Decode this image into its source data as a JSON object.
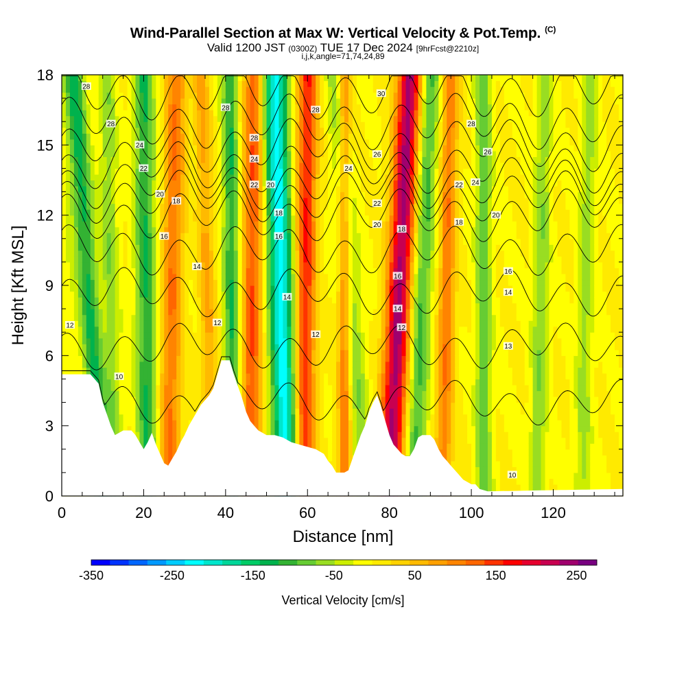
{
  "title": {
    "main": "Wind-Parallel Section at Max W: Vertical Velocity & Pot.Temp.",
    "mark": "(C)",
    "valid_prefix": "Valid 1200 JST",
    "valid_utc": "(0300Z)",
    "valid_date": "TUE 17 Dec 2024",
    "forecast": "[9hrFcst@2210z]",
    "params": "i,j,k,angle=71,74,24,89"
  },
  "chart_data": {
    "type": "heatmap",
    "xlabel": "Distance [nm]",
    "ylabel": "Height [Kft MSL]",
    "xlim": [
      0,
      137
    ],
    "ylim": [
      0,
      18
    ],
    "xticks": [
      0,
      20,
      40,
      60,
      80,
      100,
      120
    ],
    "yticks": [
      0,
      3,
      6,
      9,
      12,
      15,
      18
    ],
    "colorbar": {
      "label": "Vertical Velocity [cm/s]",
      "ticks": [
        -350,
        -250,
        -150,
        -50,
        50,
        150,
        250
      ],
      "range": [
        -350,
        275
      ],
      "step": 25,
      "colors": [
        "#0000ff",
        "#0033ff",
        "#0066ff",
        "#0099ff",
        "#00ccff",
        "#00ffff",
        "#00e6cc",
        "#00d699",
        "#00cc66",
        "#00b24d",
        "#33b233",
        "#66cc33",
        "#99dd22",
        "#ccee00",
        "#ffff00",
        "#ffea00",
        "#ffd200",
        "#ffba00",
        "#ffa000",
        "#ff8400",
        "#ff6600",
        "#ff3300",
        "#ff0000",
        "#e6002e",
        "#c80050",
        "#a0006e",
        "#780080"
      ]
    },
    "w_field": {
      "background_cm_s": 25,
      "bands": [
        {
          "x_bottom": 1,
          "x_top": 2,
          "w": -15,
          "width": 3
        },
        {
          "x_bottom": 10,
          "x_top": 3,
          "w": -130,
          "width": 2.5
        },
        {
          "x_bottom": 13,
          "x_top": 11,
          "w": -70,
          "width": 2
        },
        {
          "x_bottom": 21,
          "x_top": 20,
          "w": -125,
          "width": 2.5
        },
        {
          "x_bottom": 26,
          "x_top": 28,
          "w": 125,
          "width": 2.5
        },
        {
          "x_bottom": 37,
          "x_top": 34,
          "w": 80,
          "width": 2
        },
        {
          "x_bottom": 42,
          "x_top": 41,
          "w": -125,
          "width": 2
        },
        {
          "x_bottom": 46,
          "x_top": 47,
          "w": 150,
          "width": 2.5
        },
        {
          "x_bottom": 55,
          "x_top": 52,
          "w": -240,
          "width": 3
        },
        {
          "x_bottom": 59,
          "x_top": 60,
          "w": 175,
          "width": 2.5
        },
        {
          "x_bottom": 69,
          "x_top": 69,
          "w": 130,
          "width": 1.5
        },
        {
          "x_bottom": 74,
          "x_top": 67,
          "w": -70,
          "width": 2.5
        },
        {
          "x_bottom": 80,
          "x_top": 85,
          "w": 260,
          "width": 3
        },
        {
          "x_bottom": 86,
          "x_top": 90,
          "w": -110,
          "width": 2.5
        },
        {
          "x_bottom": 93,
          "x_top": 95,
          "w": 120,
          "width": 2
        },
        {
          "x_bottom": 103,
          "x_top": 103,
          "w": -90,
          "width": 2
        },
        {
          "x_bottom": 116,
          "x_top": 118,
          "w": -70,
          "width": 2
        },
        {
          "x_bottom": 127,
          "x_top": 129,
          "w": -60,
          "width": 2
        }
      ]
    },
    "terrain_kft": [
      [
        0,
        5.2
      ],
      [
        2,
        5.2
      ],
      [
        7,
        5.2
      ],
      [
        9,
        4.8
      ],
      [
        10,
        4.0
      ],
      [
        11,
        3.5
      ],
      [
        12,
        3.0
      ],
      [
        13,
        2.6
      ],
      [
        15,
        2.8
      ],
      [
        17,
        2.8
      ],
      [
        18,
        2.6
      ],
      [
        19,
        2.3
      ],
      [
        20,
        2.0
      ],
      [
        21,
        2.3
      ],
      [
        22,
        2.7
      ],
      [
        23,
        2.2
      ],
      [
        24,
        1.8
      ],
      [
        25,
        1.4
      ],
      [
        26,
        1.3
      ],
      [
        27,
        1.6
      ],
      [
        28,
        1.9
      ],
      [
        29,
        2.3
      ],
      [
        30,
        2.6
      ],
      [
        31,
        3.0
      ],
      [
        32,
        3.3
      ],
      [
        33,
        3.6
      ],
      [
        34,
        3.9
      ],
      [
        35,
        4.1
      ],
      [
        36,
        4.3
      ],
      [
        37,
        4.6
      ],
      [
        38,
        5.2
      ],
      [
        39,
        5.8
      ],
      [
        40,
        5.8
      ],
      [
        41,
        5.8
      ],
      [
        42,
        5.2
      ],
      [
        43,
        4.7
      ],
      [
        44,
        4.2
      ],
      [
        45,
        3.6
      ],
      [
        46,
        3.2
      ],
      [
        47,
        3.0
      ],
      [
        48,
        2.8
      ],
      [
        49,
        2.7
      ],
      [
        50,
        2.6
      ],
      [
        52,
        2.6
      ],
      [
        54,
        2.5
      ],
      [
        56,
        2.3
      ],
      [
        58,
        2.2
      ],
      [
        60,
        2.1
      ],
      [
        62,
        2.0
      ],
      [
        64,
        1.8
      ],
      [
        65,
        1.5
      ],
      [
        66,
        1.3
      ],
      [
        67,
        1.0
      ],
      [
        69,
        1.0
      ],
      [
        70,
        1.1
      ],
      [
        71,
        1.6
      ],
      [
        72,
        2.1
      ],
      [
        73,
        2.6
      ],
      [
        74,
        3.0
      ],
      [
        75,
        3.6
      ],
      [
        76,
        4.0
      ],
      [
        77,
        4.3
      ],
      [
        78,
        3.8
      ],
      [
        79,
        3.2
      ],
      [
        80,
        2.6
      ],
      [
        81,
        2.2
      ],
      [
        82,
        2.0
      ],
      [
        83,
        1.8
      ],
      [
        84,
        1.7
      ],
      [
        85,
        1.7
      ],
      [
        86,
        2.0
      ],
      [
        87,
        2.5
      ],
      [
        88,
        2.6
      ],
      [
        90,
        2.6
      ],
      [
        91,
        2.4
      ],
      [
        92,
        2.0
      ],
      [
        93,
        1.7
      ],
      [
        94,
        1.5
      ],
      [
        95,
        1.3
      ],
      [
        96,
        1.1
      ],
      [
        97,
        0.9
      ],
      [
        98,
        0.7
      ],
      [
        99,
        0.6
      ],
      [
        100,
        0.5
      ],
      [
        101,
        0.5
      ],
      [
        102,
        0.3
      ],
      [
        104,
        0.2
      ],
      [
        137,
        0.3
      ]
    ],
    "theta_contours": {
      "label": "Pot.Temp.",
      "base_levels": [
        {
          "level": 10,
          "z": 4.0
        },
        {
          "level": 12,
          "z": 6.4
        },
        {
          "level": 14,
          "z": 8.7
        },
        {
          "level": 16,
          "z": 10.5
        },
        {
          "level": 18,
          "z": 12.0
        },
        {
          "level": 20,
          "z": 12.8
        },
        {
          "level": 22,
          "z": 13.4
        },
        {
          "level": 24,
          "z": 14.1
        },
        {
          "level": 26,
          "z": 15.0
        },
        {
          "level": 28,
          "z": 16.0
        },
        {
          "level": 30,
          "z": 17.3
        }
      ],
      "labels": [
        {
          "x": 6,
          "y": 17.5,
          "text": "28"
        },
        {
          "x": 12,
          "y": 15.9,
          "text": "28"
        },
        {
          "x": 19,
          "y": 15.0,
          "text": "24"
        },
        {
          "x": 20,
          "y": 14.0,
          "text": "22"
        },
        {
          "x": 24,
          "y": 12.9,
          "text": "20"
        },
        {
          "x": 28,
          "y": 12.6,
          "text": "18"
        },
        {
          "x": 25,
          "y": 11.1,
          "text": "16"
        },
        {
          "x": 33,
          "y": 9.8,
          "text": "14"
        },
        {
          "x": 38,
          "y": 7.4,
          "text": "12"
        },
        {
          "x": 2,
          "y": 7.3,
          "text": "12"
        },
        {
          "x": 14,
          "y": 5.1,
          "text": "10"
        },
        {
          "x": 40,
          "y": 16.6,
          "text": "28"
        },
        {
          "x": 47,
          "y": 15.3,
          "text": "28"
        },
        {
          "x": 47,
          "y": 14.4,
          "text": "24"
        },
        {
          "x": 47,
          "y": 13.3,
          "text": "22"
        },
        {
          "x": 51,
          "y": 13.3,
          "text": "20"
        },
        {
          "x": 53,
          "y": 12.1,
          "text": "18"
        },
        {
          "x": 53,
          "y": 11.1,
          "text": "16"
        },
        {
          "x": 55,
          "y": 8.5,
          "text": "14"
        },
        {
          "x": 62,
          "y": 6.9,
          "text": "12"
        },
        {
          "x": 62,
          "y": 16.5,
          "text": "28"
        },
        {
          "x": 70,
          "y": 14.0,
          "text": "24"
        },
        {
          "x": 78,
          "y": 17.2,
          "text": "30"
        },
        {
          "x": 77,
          "y": 14.6,
          "text": "26"
        },
        {
          "x": 77,
          "y": 12.5,
          "text": "22"
        },
        {
          "x": 77,
          "y": 11.6,
          "text": "20"
        },
        {
          "x": 83,
          "y": 11.4,
          "text": "18"
        },
        {
          "x": 82,
          "y": 9.4,
          "text": "16"
        },
        {
          "x": 82,
          "y": 8.0,
          "text": "14"
        },
        {
          "x": 83,
          "y": 7.2,
          "text": "12"
        },
        {
          "x": 100,
          "y": 15.9,
          "text": "28"
        },
        {
          "x": 104,
          "y": 14.7,
          "text": "26"
        },
        {
          "x": 97,
          "y": 13.3,
          "text": "22"
        },
        {
          "x": 101,
          "y": 13.4,
          "text": "24"
        },
        {
          "x": 97,
          "y": 11.7,
          "text": "18"
        },
        {
          "x": 106,
          "y": 12.0,
          "text": "20"
        },
        {
          "x": 109,
          "y": 9.6,
          "text": "16"
        },
        {
          "x": 109,
          "y": 8.7,
          "text": "14"
        },
        {
          "x": 109,
          "y": 6.4,
          "text": "13"
        },
        {
          "x": 110,
          "y": 0.9,
          "text": "10"
        }
      ]
    }
  }
}
